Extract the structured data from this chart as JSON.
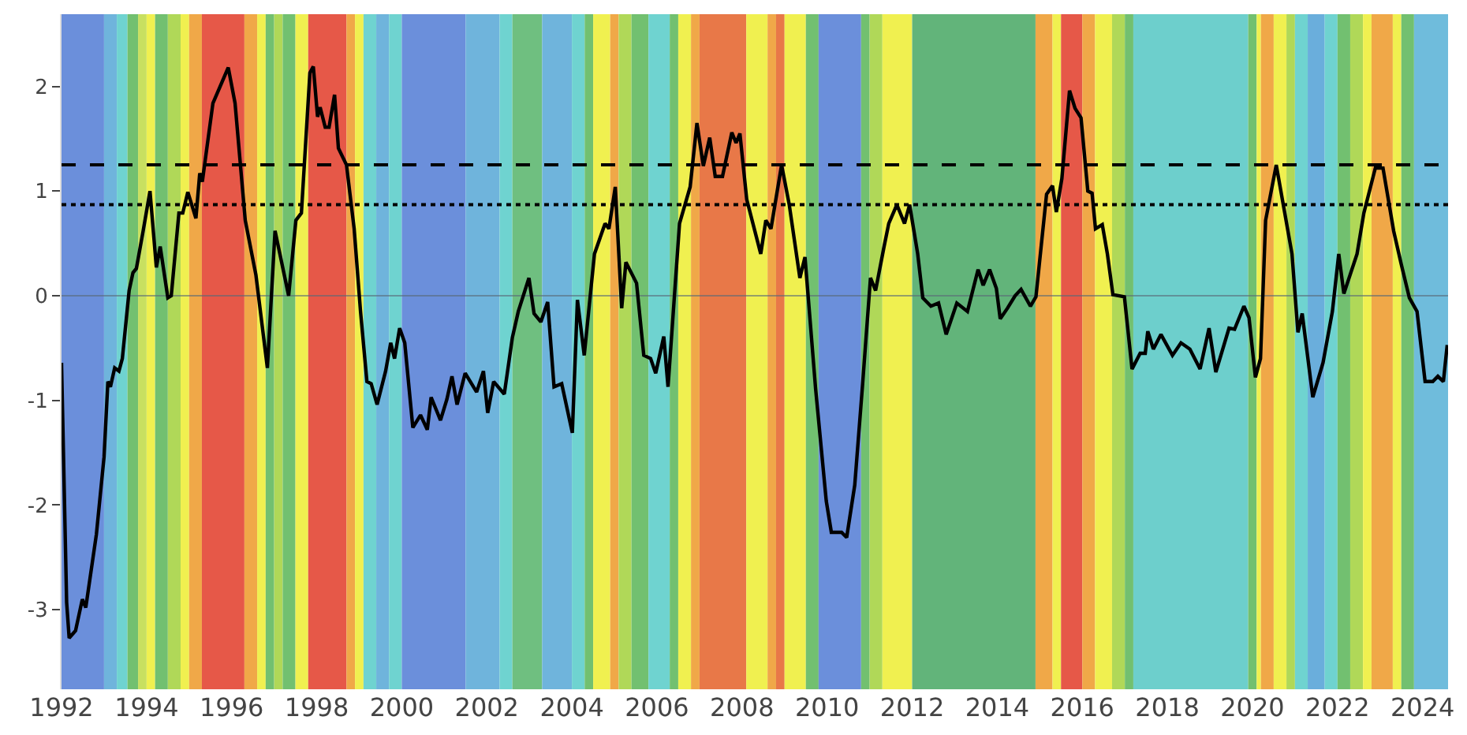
{
  "chart_data": {
    "type": "line",
    "x": [
      1992.0,
      1992.12,
      1992.18,
      1992.33,
      1992.49,
      1992.57,
      1992.82,
      1993.0,
      1993.09,
      1993.15,
      1993.25,
      1993.35,
      1993.43,
      1993.59,
      1993.68,
      1993.76,
      1993.92,
      1994.08,
      1994.23,
      1994.32,
      1994.5,
      1994.58,
      1994.76,
      1994.85,
      1994.97,
      1995.16,
      1995.25,
      1995.31,
      1995.56,
      1995.92,
      1996.08,
      1996.32,
      1996.57,
      1996.84,
      1997.02,
      1997.34,
      1997.51,
      1997.64,
      1997.84,
      1997.92,
      1998.02,
      1998.08,
      1998.2,
      1998.29,
      1998.42,
      1998.51,
      1998.7,
      1998.88,
      1999.03,
      1999.18,
      1999.28,
      1999.42,
      1999.62,
      1999.74,
      1999.83,
      1999.95,
      2000.07,
      2000.26,
      2000.44,
      2000.6,
      2000.69,
      2000.91,
      2001.06,
      2001.18,
      2001.3,
      2001.49,
      2001.76,
      2001.92,
      2002.02,
      2002.16,
      2002.41,
      2002.6,
      2002.74,
      2002.99,
      2003.11,
      2003.27,
      2003.43,
      2003.58,
      2003.76,
      2004.01,
      2004.13,
      2004.29,
      2004.53,
      2004.78,
      2004.87,
      2005.02,
      2005.17,
      2005.27,
      2005.52,
      2005.69,
      2005.85,
      2005.97,
      2006.16,
      2006.26,
      2006.53,
      2006.78,
      2006.94,
      2007.09,
      2007.24,
      2007.37,
      2007.54,
      2007.76,
      2007.86,
      2007.95,
      2008.11,
      2008.44,
      2008.56,
      2008.68,
      2008.93,
      2009.11,
      2009.36,
      2009.48,
      2009.73,
      2009.98,
      2010.1,
      2010.34,
      2010.46,
      2010.65,
      2010.83,
      2011.02,
      2011.14,
      2011.33,
      2011.45,
      2011.64,
      2011.82,
      2011.94,
      2012.13,
      2012.25,
      2012.44,
      2012.62,
      2012.8,
      2013.05,
      2013.3,
      2013.55,
      2013.67,
      2013.82,
      2013.98,
      2014.07,
      2014.24,
      2014.42,
      2014.56,
      2014.78,
      2014.91,
      2015.16,
      2015.3,
      2015.39,
      2015.52,
      2015.7,
      2015.83,
      2015.97,
      2016.13,
      2016.23,
      2016.31,
      2016.47,
      2016.59,
      2016.72,
      2016.99,
      2017.17,
      2017.36,
      2017.48,
      2017.54,
      2017.67,
      2017.85,
      2018.12,
      2018.32,
      2018.53,
      2018.77,
      2018.98,
      2019.14,
      2019.45,
      2019.58,
      2019.8,
      2019.92,
      2020.07,
      2020.19,
      2020.31,
      2020.56,
      2020.93,
      2021.07,
      2021.17,
      2021.42,
      2021.66,
      2021.88,
      2022.03,
      2022.15,
      2022.46,
      2022.62,
      2022.89,
      2023.07,
      2023.32,
      2023.5,
      2023.69,
      2023.87,
      2024.06,
      2024.24,
      2024.36,
      2024.49,
      2024.58
    ],
    "series": [
      {
        "color": "#000000",
        "values": [
          -0.64,
          -2.93,
          -3.27,
          -3.2,
          -2.9,
          -2.98,
          -2.28,
          -1.54,
          -0.82,
          -0.87,
          -0.69,
          -0.72,
          -0.6,
          0.05,
          0.22,
          0.26,
          0.62,
          1.0,
          0.27,
          0.47,
          -0.02,
          0.0,
          0.79,
          0.79,
          0.99,
          0.74,
          1.17,
          1.09,
          1.84,
          2.18,
          1.84,
          0.72,
          0.2,
          -0.69,
          0.62,
          0.0,
          0.72,
          0.79,
          2.13,
          2.19,
          1.71,
          1.8,
          1.61,
          1.61,
          1.92,
          1.41,
          1.25,
          0.64,
          -0.15,
          -0.82,
          -0.84,
          -1.04,
          -0.72,
          -0.45,
          -0.6,
          -0.31,
          -0.45,
          -1.26,
          -1.14,
          -1.28,
          -0.97,
          -1.19,
          -0.99,
          -0.77,
          -1.04,
          -0.74,
          -0.92,
          -0.72,
          -1.12,
          -0.82,
          -0.94,
          -0.4,
          -0.15,
          0.17,
          -0.17,
          -0.25,
          -0.06,
          -0.87,
          -0.84,
          -1.31,
          -0.04,
          -0.57,
          0.4,
          0.69,
          0.64,
          1.04,
          -0.12,
          0.32,
          0.12,
          -0.57,
          -0.6,
          -0.74,
          -0.39,
          -0.87,
          0.69,
          1.04,
          1.65,
          1.24,
          1.51,
          1.14,
          1.14,
          1.56,
          1.46,
          1.55,
          0.92,
          0.4,
          0.72,
          0.64,
          1.25,
          0.87,
          0.17,
          0.37,
          -0.89,
          -1.96,
          -2.26,
          -2.26,
          -2.31,
          -1.81,
          -0.87,
          0.17,
          0.05,
          0.45,
          0.69,
          0.87,
          0.69,
          0.87,
          0.4,
          -0.02,
          -0.1,
          -0.07,
          -0.37,
          -0.07,
          -0.15,
          0.25,
          0.1,
          0.25,
          0.07,
          -0.22,
          -0.12,
          0.0,
          0.06,
          -0.1,
          -0.01,
          0.97,
          1.05,
          0.8,
          1.12,
          1.96,
          1.79,
          1.7,
          1.0,
          0.98,
          0.64,
          0.68,
          0.4,
          0.01,
          -0.01,
          -0.7,
          -0.55,
          -0.55,
          -0.34,
          -0.51,
          -0.37,
          -0.57,
          -0.45,
          -0.51,
          -0.7,
          -0.31,
          -0.73,
          -0.31,
          -0.32,
          -0.1,
          -0.21,
          -0.78,
          -0.6,
          0.72,
          1.25,
          0.4,
          -0.35,
          -0.17,
          -0.97,
          -0.64,
          -0.15,
          0.4,
          0.02,
          0.4,
          0.79,
          1.22,
          1.22,
          0.62,
          0.3,
          -0.02,
          -0.15,
          -0.82,
          -0.82,
          -0.77,
          -0.82,
          -0.47
        ]
      }
    ],
    "xlim": [
      1992,
      2024.6
    ],
    "xticks": [
      1992,
      1994,
      1996,
      1998,
      2000,
      2002,
      2004,
      2006,
      2008,
      2010,
      2012,
      2014,
      2016,
      2018,
      2020,
      2022,
      2024
    ],
    "ylim": [
      -3.76,
      2.69
    ],
    "yticks": [
      -3,
      -2,
      -1,
      0,
      1,
      2
    ],
    "grid": false,
    "marker": "none",
    "line_style": "solid",
    "ref_lines": [
      {
        "axis": "y",
        "value": 1.25,
        "color": "#000000",
        "line_style": "dashed"
      },
      {
        "axis": "y",
        "value": 0.87,
        "color": "#000000",
        "line_style": "dotted"
      },
      {
        "axis": "y",
        "value": 0,
        "color": "#5a6a78",
        "line_style": "solid"
      }
    ],
    "bands": [
      {
        "axis": "x",
        "from": 1992.0,
        "to": 1993.0,
        "color": "#6b8fdb"
      },
      {
        "axis": "x",
        "from": 1993.0,
        "to": 1993.3,
        "color": "#6fb4dc"
      },
      {
        "axis": "x",
        "from": 1993.3,
        "to": 1993.55,
        "color": "#6fd3d0"
      },
      {
        "axis": "x",
        "from": 1993.55,
        "to": 1993.8,
        "color": "#72c070"
      },
      {
        "axis": "x",
        "from": 1993.8,
        "to": 1994.0,
        "color": "#c8e060"
      },
      {
        "axis": "x",
        "from": 1994.0,
        "to": 1994.2,
        "color": "#f0f050"
      },
      {
        "axis": "x",
        "from": 1994.2,
        "to": 1994.5,
        "color": "#72c070"
      },
      {
        "axis": "x",
        "from": 1994.5,
        "to": 1994.8,
        "color": "#b0d858"
      },
      {
        "axis": "x",
        "from": 1994.8,
        "to": 1995.0,
        "color": "#f0f050"
      },
      {
        "axis": "x",
        "from": 1995.0,
        "to": 1995.3,
        "color": "#f0a848"
      },
      {
        "axis": "x",
        "from": 1995.3,
        "to": 1996.3,
        "color": "#e65848"
      },
      {
        "axis": "x",
        "from": 1996.3,
        "to": 1996.6,
        "color": "#f0a848"
      },
      {
        "axis": "x",
        "from": 1996.6,
        "to": 1996.8,
        "color": "#f0f050"
      },
      {
        "axis": "x",
        "from": 1996.8,
        "to": 1997.0,
        "color": "#72c070"
      },
      {
        "axis": "x",
        "from": 1997.0,
        "to": 1997.2,
        "color": "#b0d858"
      },
      {
        "axis": "x",
        "from": 1997.2,
        "to": 1997.5,
        "color": "#72c070"
      },
      {
        "axis": "x",
        "from": 1997.5,
        "to": 1997.8,
        "color": "#f0f050"
      },
      {
        "axis": "x",
        "from": 1997.8,
        "to": 1998.7,
        "color": "#e65848"
      },
      {
        "axis": "x",
        "from": 1998.7,
        "to": 1998.9,
        "color": "#f0a848"
      },
      {
        "axis": "x",
        "from": 1998.9,
        "to": 1999.1,
        "color": "#f0f050"
      },
      {
        "axis": "x",
        "from": 1999.1,
        "to": 1999.4,
        "color": "#6fd3d0"
      },
      {
        "axis": "x",
        "from": 1999.4,
        "to": 1999.7,
        "color": "#6fb4dc"
      },
      {
        "axis": "x",
        "from": 1999.7,
        "to": 2000.0,
        "color": "#6fd3d0"
      },
      {
        "axis": "x",
        "from": 2000.0,
        "to": 2001.5,
        "color": "#6b8fdb"
      },
      {
        "axis": "x",
        "from": 2001.5,
        "to": 2002.3,
        "color": "#6fb4dc"
      },
      {
        "axis": "x",
        "from": 2002.3,
        "to": 2002.6,
        "color": "#6fd3d0"
      },
      {
        "axis": "x",
        "from": 2002.6,
        "to": 2003.3,
        "color": "#6fbf80"
      },
      {
        "axis": "x",
        "from": 2003.3,
        "to": 2004.0,
        "color": "#6fb4dc"
      },
      {
        "axis": "x",
        "from": 2004.0,
        "to": 2004.3,
        "color": "#6fd3d0"
      },
      {
        "axis": "x",
        "from": 2004.3,
        "to": 2004.5,
        "color": "#72c070"
      },
      {
        "axis": "x",
        "from": 2004.5,
        "to": 2004.9,
        "color": "#f0f050"
      },
      {
        "axis": "x",
        "from": 2004.9,
        "to": 2005.1,
        "color": "#f0a848"
      },
      {
        "axis": "x",
        "from": 2005.1,
        "to": 2005.4,
        "color": "#b0d858"
      },
      {
        "axis": "x",
        "from": 2005.4,
        "to": 2005.8,
        "color": "#72c070"
      },
      {
        "axis": "x",
        "from": 2005.8,
        "to": 2006.3,
        "color": "#6fd3d0"
      },
      {
        "axis": "x",
        "from": 2006.3,
        "to": 2006.5,
        "color": "#72c070"
      },
      {
        "axis": "x",
        "from": 2006.5,
        "to": 2006.8,
        "color": "#f0f050"
      },
      {
        "axis": "x",
        "from": 2006.8,
        "to": 2007.0,
        "color": "#f0a848"
      },
      {
        "axis": "x",
        "from": 2007.0,
        "to": 2008.1,
        "color": "#e87848"
      },
      {
        "axis": "x",
        "from": 2008.1,
        "to": 2008.6,
        "color": "#f0f050"
      },
      {
        "axis": "x",
        "from": 2008.6,
        "to": 2008.8,
        "color": "#f0a848"
      },
      {
        "axis": "x",
        "from": 2008.8,
        "to": 2009.0,
        "color": "#e87848"
      },
      {
        "axis": "x",
        "from": 2009.0,
        "to": 2009.5,
        "color": "#f0f050"
      },
      {
        "axis": "x",
        "from": 2009.5,
        "to": 2009.8,
        "color": "#72c070"
      },
      {
        "axis": "x",
        "from": 2009.8,
        "to": 2010.8,
        "color": "#6b8fdb"
      },
      {
        "axis": "x",
        "from": 2010.8,
        "to": 2011.0,
        "color": "#72c070"
      },
      {
        "axis": "x",
        "from": 2011.0,
        "to": 2011.3,
        "color": "#b0d858"
      },
      {
        "axis": "x",
        "from": 2011.3,
        "to": 2012.0,
        "color": "#f0f050"
      },
      {
        "axis": "x",
        "from": 2012.0,
        "to": 2014.9,
        "color": "#62b47a"
      },
      {
        "axis": "x",
        "from": 2014.9,
        "to": 2015.3,
        "color": "#f0a848"
      },
      {
        "axis": "x",
        "from": 2015.3,
        "to": 2015.5,
        "color": "#f0f050"
      },
      {
        "axis": "x",
        "from": 2015.5,
        "to": 2016.0,
        "color": "#e65848"
      },
      {
        "axis": "x",
        "from": 2016.0,
        "to": 2016.3,
        "color": "#f0a848"
      },
      {
        "axis": "x",
        "from": 2016.3,
        "to": 2016.7,
        "color": "#f0f050"
      },
      {
        "axis": "x",
        "from": 2016.7,
        "to": 2017.0,
        "color": "#b0d858"
      },
      {
        "axis": "x",
        "from": 2017.0,
        "to": 2017.2,
        "color": "#72c070"
      },
      {
        "axis": "x",
        "from": 2017.2,
        "to": 2019.9,
        "color": "#6dcfcc"
      },
      {
        "axis": "x",
        "from": 2019.9,
        "to": 2020.1,
        "color": "#72c070"
      },
      {
        "axis": "x",
        "from": 2020.1,
        "to": 2020.2,
        "color": "#f0f050"
      },
      {
        "axis": "x",
        "from": 2020.2,
        "to": 2020.5,
        "color": "#f0a848"
      },
      {
        "axis": "x",
        "from": 2020.5,
        "to": 2020.8,
        "color": "#f0f050"
      },
      {
        "axis": "x",
        "from": 2020.8,
        "to": 2021.0,
        "color": "#b0d858"
      },
      {
        "axis": "x",
        "from": 2021.0,
        "to": 2021.3,
        "color": "#6fd3d0"
      },
      {
        "axis": "x",
        "from": 2021.3,
        "to": 2021.7,
        "color": "#6aaedc"
      },
      {
        "axis": "x",
        "from": 2021.7,
        "to": 2022.0,
        "color": "#6fd3d0"
      },
      {
        "axis": "x",
        "from": 2022.0,
        "to": 2022.3,
        "color": "#72c070"
      },
      {
        "axis": "x",
        "from": 2022.3,
        "to": 2022.6,
        "color": "#b0d858"
      },
      {
        "axis": "x",
        "from": 2022.6,
        "to": 2022.8,
        "color": "#f0f050"
      },
      {
        "axis": "x",
        "from": 2022.8,
        "to": 2023.3,
        "color": "#f0a848"
      },
      {
        "axis": "x",
        "from": 2023.3,
        "to": 2023.5,
        "color": "#f0f050"
      },
      {
        "axis": "x",
        "from": 2023.5,
        "to": 2023.8,
        "color": "#72c070"
      },
      {
        "axis": "x",
        "from": 2023.8,
        "to": 2024.6,
        "color": "#6fbcdc"
      }
    ]
  }
}
